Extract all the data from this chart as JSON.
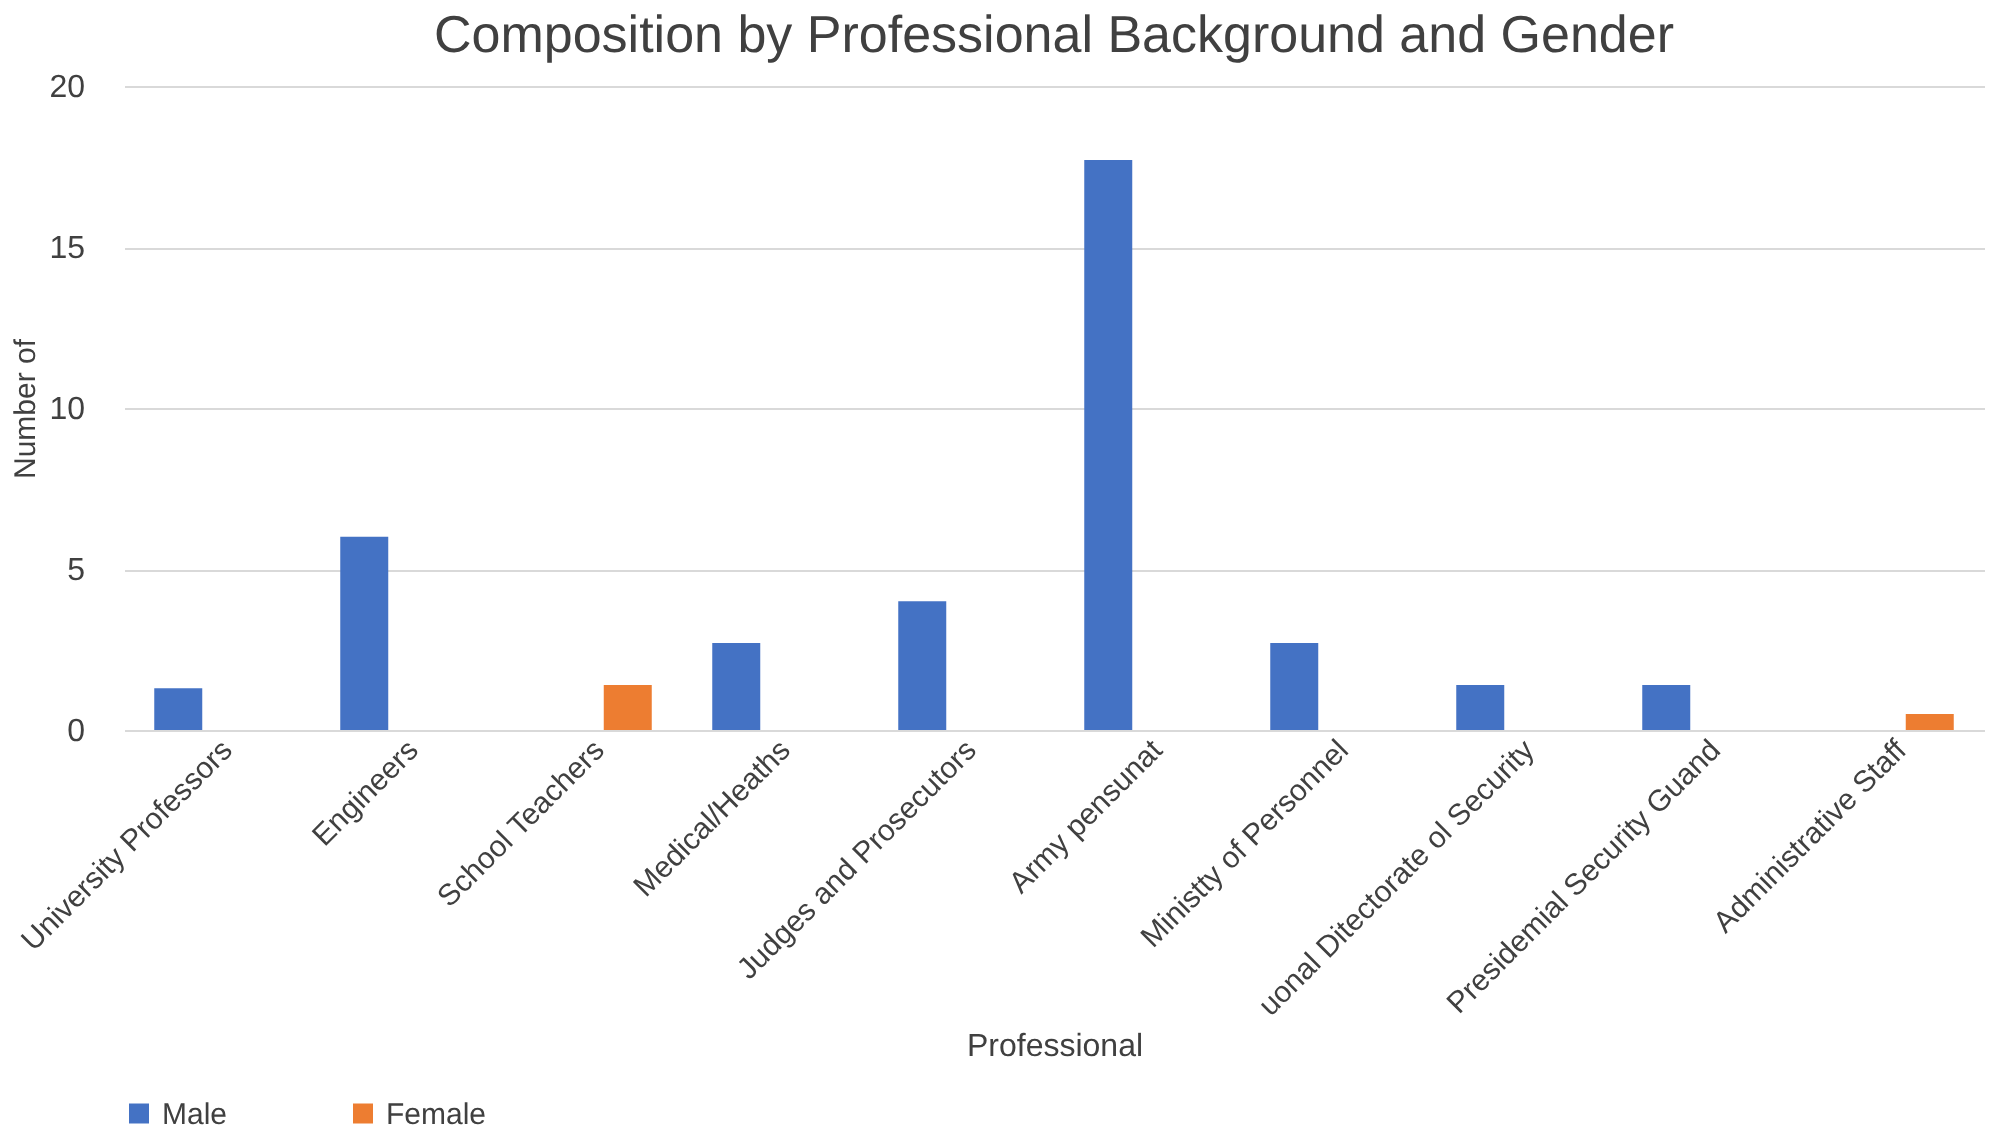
{
  "chart_data": {
    "type": "bar",
    "title": "Composition by Professional Background and Gender",
    "xlabel": "Professional",
    "ylabel": "Number of",
    "categories": [
      "University Professors",
      "Engineers",
      "School Teachers",
      "Medical/Heaths",
      "Judges and Prosecutors",
      "Army pensunat",
      "Ministty of Personnel",
      "uonal Ditectorate ol Security",
      "Presidemial Security Guand",
      "Administrative Staff"
    ],
    "series": [
      {
        "name": "Male",
        "color": "#4472c4",
        "values": [
          1.3,
          6.0,
          null,
          2.7,
          4.0,
          17.7,
          2.7,
          1.4,
          1.4,
          null
        ]
      },
      {
        "name": "Female",
        "color": "#ed7d31",
        "values": [
          null,
          null,
          1.4,
          null,
          null,
          null,
          null,
          null,
          null,
          0.5
        ]
      }
    ],
    "ylim": [
      0,
      20
    ],
    "yticks": [
      0,
      5,
      10,
      15,
      20
    ],
    "grid": "y",
    "legend": "bottom"
  }
}
